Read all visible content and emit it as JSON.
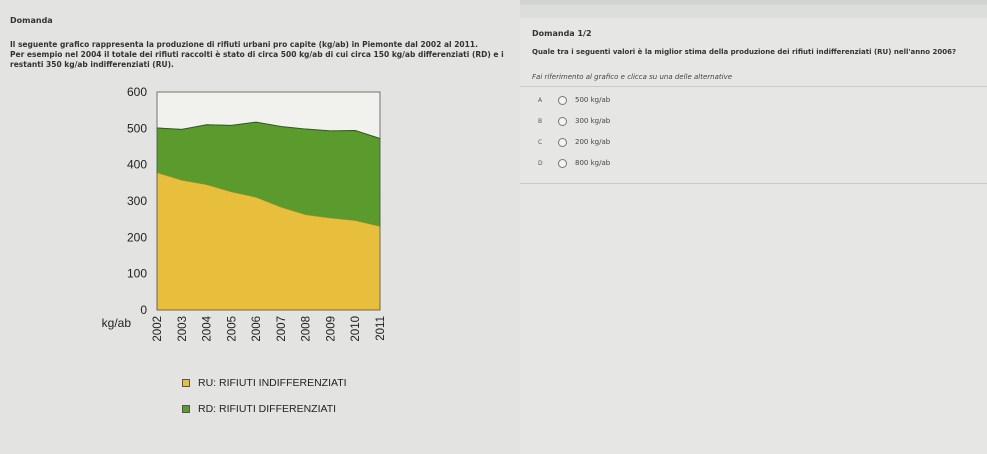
{
  "header": {
    "title": "Domanda"
  },
  "intro": {
    "line1": "Il seguente grafico rappresenta la produzione di rifiuti urbani pro capite (kg/ab) in Piemonte dal 2002 al 2011.",
    "line2": "Per esempio nel 2004 il totale dei rifiuti raccolti è stato di circa 500 kg/ab di cui circa 150 kg/ab differenziati (RD) e i",
    "line3": "restanti 350 kg/ab indifferenziati (RU)."
  },
  "chart_data": {
    "type": "area",
    "stacked": true,
    "x": [
      "2002",
      "2003",
      "2004",
      "2005",
      "2006",
      "2007",
      "2008",
      "2009",
      "2010",
      "2011"
    ],
    "ylabel": "kg/ab",
    "ylim": [
      0,
      600
    ],
    "yticks": [
      0,
      100,
      200,
      300,
      400,
      500,
      600
    ],
    "series": [
      {
        "name": "RU: RIFIUTI INDIFFERENZIATI",
        "color": "#e8bf3c",
        "values": [
          378,
          357,
          345,
          325,
          310,
          283,
          262,
          253,
          246,
          230
        ]
      },
      {
        "name": "RD: RIFIUTI DIFFERENZIATI",
        "color": "#5b9a2c",
        "values": [
          123,
          140,
          165,
          183,
          207,
          222,
          236,
          240,
          248,
          242
        ]
      }
    ],
    "totals": [
      501,
      497,
      510,
      508,
      517,
      505,
      498,
      493,
      494,
      472
    ],
    "legend_position": "bottom"
  },
  "question": {
    "title": "Domanda 1/2",
    "text": "Quale tra i seguenti valori è la miglior stima della produzione dei rifiuti indifferenziati (RU) nell'anno 2006?",
    "instruction": "Fai riferimento al grafico e clicca su una delle alternative",
    "options": [
      {
        "letter": "A",
        "label": "500 kg/ab"
      },
      {
        "letter": "B",
        "label": "300 kg/ab"
      },
      {
        "letter": "C",
        "label": "200 kg/ab"
      },
      {
        "letter": "D",
        "label": "800 kg/ab"
      }
    ]
  },
  "colors": {
    "ru": "#e8bf3c",
    "rd": "#5b9a2c",
    "background": "#dcdedb"
  }
}
